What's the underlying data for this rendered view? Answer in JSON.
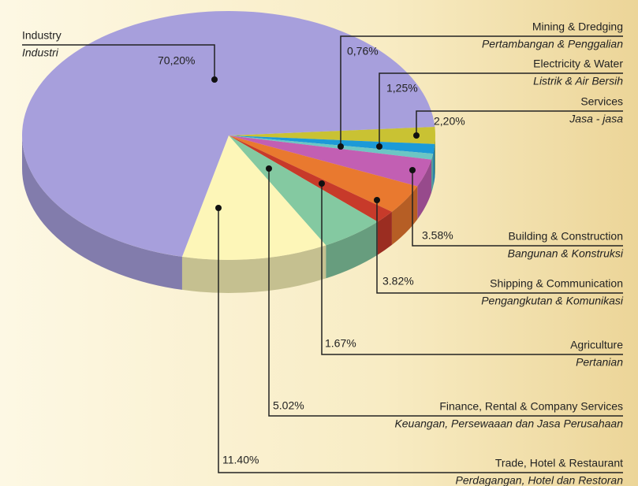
{
  "chart_data": {
    "type": "pie",
    "categories": [
      "Services",
      "Electricity & Water",
      "Mining & Dredging",
      "Building & Construction",
      "Shipping & Communication",
      "Agriculture",
      "Finance, Rental & Company Services",
      "Trade, Hotel & Restaurant",
      "Industry"
    ],
    "translations": [
      "Jasa - jasa",
      "Listrik & Air Bersih",
      "Pertambangan & Penggalian",
      "Bangunan & Konstruksi",
      "Pengangkutan & Komunikasi",
      "Pertanian",
      "Keuangan, Persewaaan dan Jasa Perusahaan",
      "Perdagangan, Hotel dan Restoran",
      "Industri"
    ],
    "values": [
      2.2,
      1.25,
      0.76,
      3.58,
      3.82,
      1.67,
      5.02,
      11.4,
      70.2
    ],
    "value_labels": [
      "2,20%",
      "1,25%",
      "0,76%",
      "3.58%",
      "3.82%",
      "1.67%",
      "5.02%",
      "11.40%",
      "70,20%"
    ],
    "colors": [
      "#c9c233",
      "#1c9ad8",
      "#6cc6c4",
      "#c25fb3",
      "#e9792f",
      "#c73a2a",
      "#84c9a1",
      "#fdf6b8",
      "#a79fdc"
    ]
  }
}
